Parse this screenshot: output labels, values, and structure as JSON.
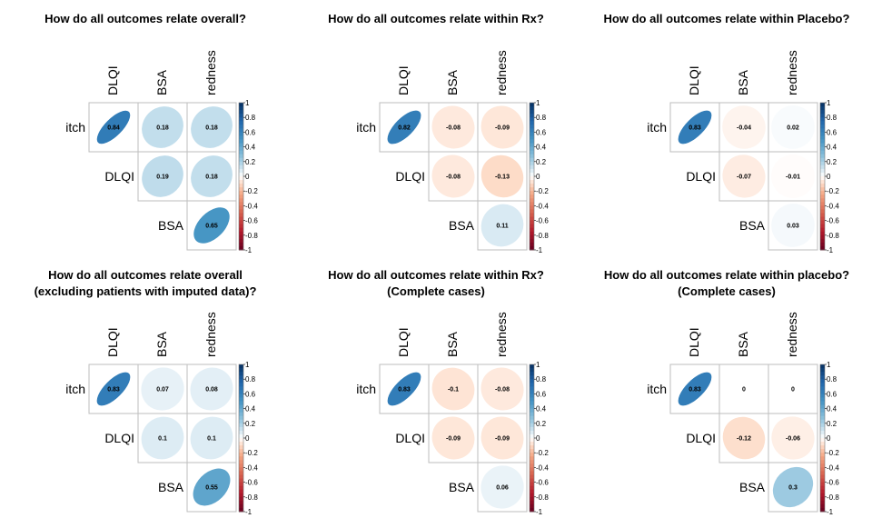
{
  "chart_data": [
    {
      "type": "heatmap",
      "title": "How do all outcomes relate overall?",
      "row_labels": [
        "itch",
        "DLQI",
        "BSA"
      ],
      "col_labels": [
        "DLQI",
        "BSA",
        "redness"
      ],
      "cells": [
        {
          "row": "itch",
          "col": "DLQI",
          "value": 0.84,
          "label": "0.84"
        },
        {
          "row": "itch",
          "col": "BSA",
          "value": 0.18,
          "label": "0.18"
        },
        {
          "row": "itch",
          "col": "redness",
          "value": 0.18,
          "label": "0.18"
        },
        {
          "row": "DLQI",
          "col": "BSA",
          "value": 0.19,
          "label": "0.19"
        },
        {
          "row": "DLQI",
          "col": "redness",
          "value": 0.18,
          "label": "0.18"
        },
        {
          "row": "BSA",
          "col": "redness",
          "value": 0.65,
          "label": "0.65"
        }
      ],
      "colorbar_ticks": [
        "1",
        "0.8",
        "0.6",
        "0.4",
        "0.2",
        "0",
        "-0.2",
        "-0.4",
        "-0.6",
        "-0.8",
        "-1"
      ],
      "colorbar_range": [
        -1,
        1
      ]
    },
    {
      "type": "heatmap",
      "title": "How do all outcomes relate within Rx?",
      "row_labels": [
        "itch",
        "DLQI",
        "BSA"
      ],
      "col_labels": [
        "DLQI",
        "BSA",
        "redness"
      ],
      "cells": [
        {
          "row": "itch",
          "col": "DLQI",
          "value": 0.82,
          "label": "0.82"
        },
        {
          "row": "itch",
          "col": "BSA",
          "value": -0.08,
          "label": "-0.08"
        },
        {
          "row": "itch",
          "col": "redness",
          "value": -0.09,
          "label": "-0.09"
        },
        {
          "row": "DLQI",
          "col": "BSA",
          "value": -0.08,
          "label": "-0.08"
        },
        {
          "row": "DLQI",
          "col": "redness",
          "value": -0.13,
          "label": "-0.13"
        },
        {
          "row": "BSA",
          "col": "redness",
          "value": 0.11,
          "label": "0.11"
        }
      ],
      "colorbar_ticks": [
        "1",
        "0.8",
        "0.6",
        "0.4",
        "0.2",
        "0",
        "-0.2",
        "-0.4",
        "-0.6",
        "-0.8",
        "-1"
      ],
      "colorbar_range": [
        -1,
        1
      ]
    },
    {
      "type": "heatmap",
      "title": "How do all outcomes relate within Placebo?",
      "row_labels": [
        "itch",
        "DLQI",
        "BSA"
      ],
      "col_labels": [
        "DLQI",
        "BSA",
        "redness"
      ],
      "cells": [
        {
          "row": "itch",
          "col": "DLQI",
          "value": 0.83,
          "label": "0.83"
        },
        {
          "row": "itch",
          "col": "BSA",
          "value": -0.04,
          "label": "-0.04"
        },
        {
          "row": "itch",
          "col": "redness",
          "value": 0.02,
          "label": "0.02"
        },
        {
          "row": "DLQI",
          "col": "BSA",
          "value": -0.07,
          "label": "-0.07"
        },
        {
          "row": "DLQI",
          "col": "redness",
          "value": -0.01,
          "label": "-0.01"
        },
        {
          "row": "BSA",
          "col": "redness",
          "value": 0.03,
          "label": "0.03"
        }
      ],
      "colorbar_ticks": [
        "1",
        "0.8",
        "0.6",
        "0.4",
        "0.2",
        "0",
        "-0.2",
        "-0.4",
        "-0.6",
        "-0.8",
        "-1"
      ],
      "colorbar_range": [
        -1,
        1
      ]
    },
    {
      "type": "heatmap",
      "title": "How do all outcomes relate overall",
      "subtitle": "(excluding patients with imputed data)?",
      "row_labels": [
        "itch",
        "DLQI",
        "BSA"
      ],
      "col_labels": [
        "DLQI",
        "BSA",
        "redness"
      ],
      "cells": [
        {
          "row": "itch",
          "col": "DLQI",
          "value": 0.83,
          "label": "0.83"
        },
        {
          "row": "itch",
          "col": "BSA",
          "value": 0.07,
          "label": "0.07"
        },
        {
          "row": "itch",
          "col": "redness",
          "value": 0.08,
          "label": "0.08"
        },
        {
          "row": "DLQI",
          "col": "BSA",
          "value": 0.1,
          "label": "0.1"
        },
        {
          "row": "DLQI",
          "col": "redness",
          "value": 0.1,
          "label": "0.1"
        },
        {
          "row": "BSA",
          "col": "redness",
          "value": 0.55,
          "label": "0.55"
        }
      ],
      "colorbar_ticks": [
        "1",
        "0.8",
        "0.6",
        "0.4",
        "0.2",
        "0",
        "-0.2",
        "-0.4",
        "-0.6",
        "-0.8",
        "-1"
      ],
      "colorbar_range": [
        -1,
        1
      ]
    },
    {
      "type": "heatmap",
      "title": "How do all outcomes relate within Rx?",
      "subtitle": "(Complete cases)",
      "row_labels": [
        "itch",
        "DLQI",
        "BSA"
      ],
      "col_labels": [
        "DLQI",
        "BSA",
        "redness"
      ],
      "cells": [
        {
          "row": "itch",
          "col": "DLQI",
          "value": 0.83,
          "label": "0.83"
        },
        {
          "row": "itch",
          "col": "BSA",
          "value": -0.1,
          "label": "-0.1"
        },
        {
          "row": "itch",
          "col": "redness",
          "value": -0.08,
          "label": "-0.08"
        },
        {
          "row": "DLQI",
          "col": "BSA",
          "value": -0.09,
          "label": "-0.09"
        },
        {
          "row": "DLQI",
          "col": "redness",
          "value": -0.09,
          "label": "-0.09"
        },
        {
          "row": "BSA",
          "col": "redness",
          "value": 0.06,
          "label": "0.06"
        }
      ],
      "colorbar_ticks": [
        "1",
        "0.8",
        "0.6",
        "0.4",
        "0.2",
        "0",
        "-0.2",
        "-0.4",
        "-0.6",
        "-0.8",
        "-1"
      ],
      "colorbar_range": [
        -1,
        1
      ]
    },
    {
      "type": "heatmap",
      "title": "How do all outcomes relate within placebo?",
      "subtitle": "(Complete cases)",
      "row_labels": [
        "itch",
        "DLQI",
        "BSA"
      ],
      "col_labels": [
        "DLQI",
        "BSA",
        "redness"
      ],
      "cells": [
        {
          "row": "itch",
          "col": "DLQI",
          "value": 0.83,
          "label": "0.83"
        },
        {
          "row": "itch",
          "col": "BSA",
          "value": 0,
          "label": "0"
        },
        {
          "row": "itch",
          "col": "redness",
          "value": 0,
          "label": "0"
        },
        {
          "row": "DLQI",
          "col": "BSA",
          "value": -0.12,
          "label": "-0.12"
        },
        {
          "row": "DLQI",
          "col": "redness",
          "value": -0.06,
          "label": "-0.06"
        },
        {
          "row": "BSA",
          "col": "redness",
          "value": 0.3,
          "label": "0.3"
        }
      ],
      "colorbar_ticks": [
        "1",
        "0.8",
        "0.6",
        "0.4",
        "0.2",
        "0",
        "-0.2",
        "-0.4",
        "-0.6",
        "-0.8",
        "-1"
      ],
      "colorbar_range": [
        -1,
        1
      ]
    }
  ]
}
